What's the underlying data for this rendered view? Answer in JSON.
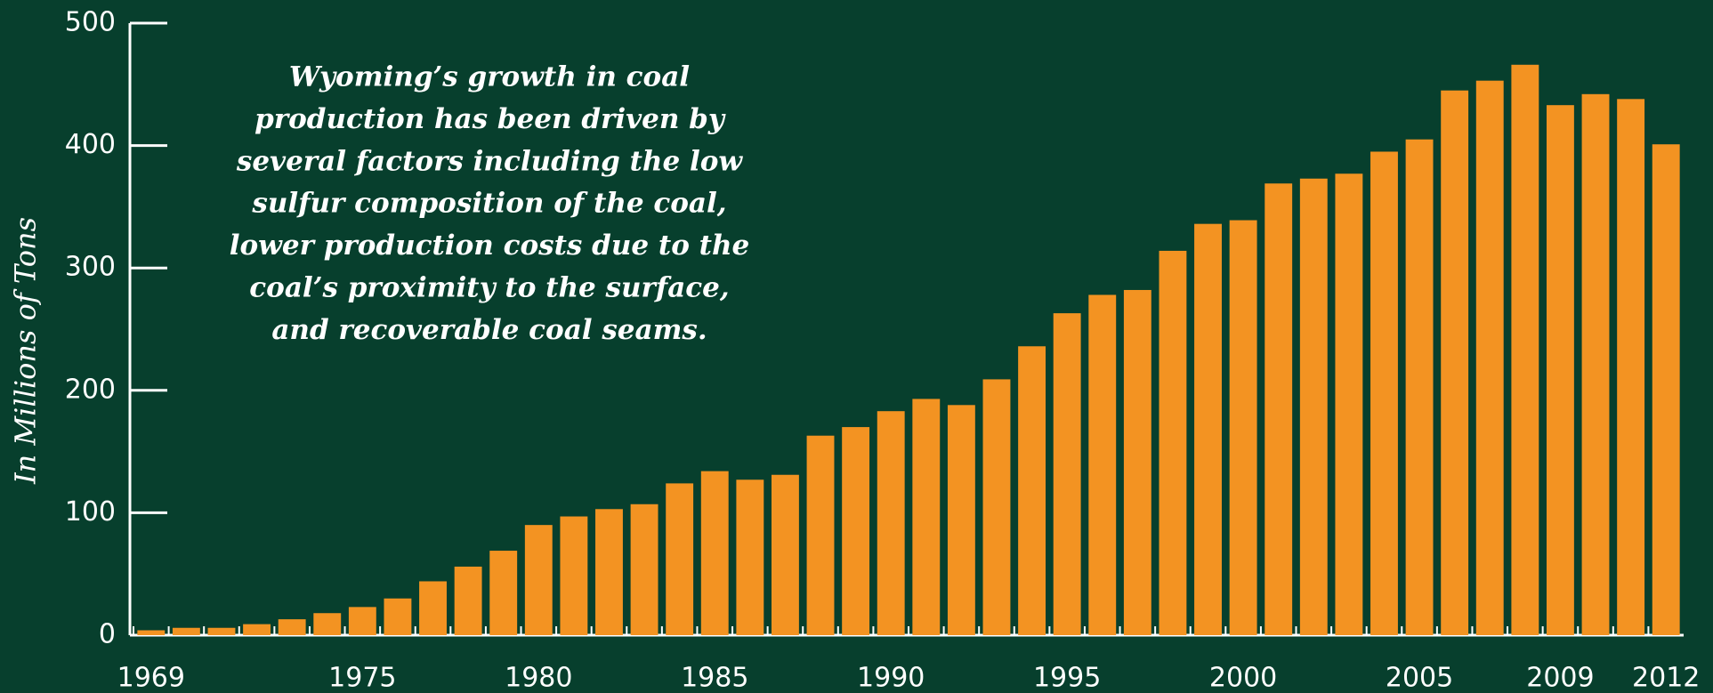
{
  "chart_data": {
    "type": "bar",
    "y_axis_label": "In Millions of Tons",
    "annotation": [
      "Wyoming’s growth in coal",
      "production has been driven by",
      "several factors including the low",
      "sulfur composition of the coal,",
      "lower production costs due to the",
      "coal’s proximity to the surface,",
      "and recoverable coal seams."
    ],
    "categories": [
      "1969",
      null,
      null,
      null,
      null,
      null,
      "1975",
      null,
      null,
      null,
      null,
      "1980",
      null,
      null,
      null,
      null,
      "1985",
      null,
      null,
      null,
      null,
      "1990",
      null,
      null,
      null,
      null,
      "1995",
      null,
      null,
      null,
      null,
      "2000",
      null,
      null,
      null,
      null,
      "2005",
      null,
      null,
      null,
      "2009",
      null,
      null,
      "2012"
    ],
    "values": [
      4,
      6,
      6,
      9,
      13,
      18,
      23,
      30,
      44,
      56,
      69,
      90,
      97,
      103,
      107,
      124,
      134,
      127,
      131,
      163,
      170,
      183,
      193,
      188,
      209,
      236,
      263,
      278,
      282,
      314,
      336,
      339,
      369,
      373,
      377,
      395,
      405,
      445,
      453,
      466,
      433,
      442,
      438,
      401
    ],
    "color": "#f39322",
    "ylim": [
      0,
      500
    ],
    "yticks": [
      0,
      100,
      200,
      300,
      400,
      500
    ]
  }
}
